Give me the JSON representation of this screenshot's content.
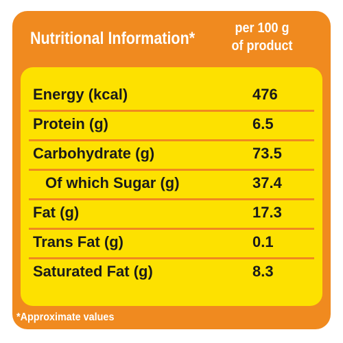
{
  "header": {
    "title": "Nutritional Information*",
    "subtitle_line1": "per 100 g",
    "subtitle_line2": "of product"
  },
  "rows": [
    {
      "label": "Energy (kcal)",
      "value": "476"
    },
    {
      "label": "Protein (g)",
      "value": "6.5"
    },
    {
      "label": "Carbohydrate (g)",
      "value": "73.5"
    },
    {
      "label": "Of which Sugar (g)",
      "value": "37.4"
    },
    {
      "label": "Fat (g)",
      "value": "17.3"
    },
    {
      "label": "Trans Fat (g)",
      "value": "0.1"
    },
    {
      "label": "Saturated Fat (g)",
      "value": "8.3"
    }
  ],
  "footer": {
    "note": "*Approximate values"
  },
  "colors": {
    "frame_orange": "#f08a1f",
    "table_yellow": "#fde100",
    "header_text": "#ffffff",
    "body_text": "#1a1a1a"
  }
}
